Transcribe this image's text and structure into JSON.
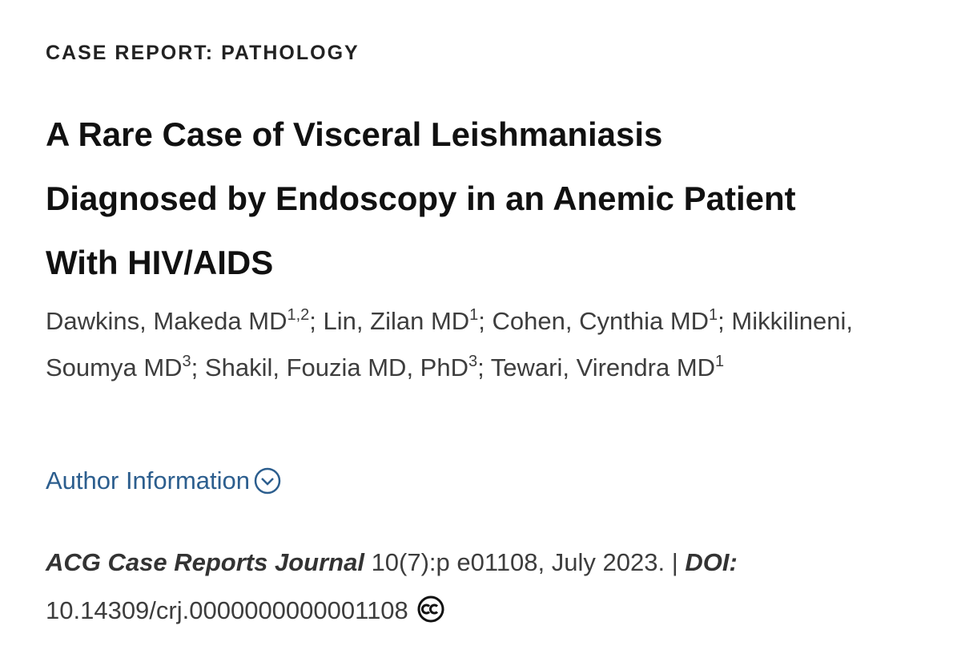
{
  "category": "CASE REPORT: PATHOLOGY",
  "title": "A Rare Case of Visceral Leishmaniasis Diagnosed by Endoscopy in an Anemic Patient With HIV/AIDS",
  "authors": {
    "separator": ";",
    "list": [
      {
        "name": "Dawkins, Makeda MD",
        "affiliations": "1,2"
      },
      {
        "name": "Lin, Zilan MD",
        "affiliations": "1"
      },
      {
        "name": "Cohen, Cynthia MD",
        "affiliations": "1"
      },
      {
        "name": "Mikkilineni, Soumya MD",
        "affiliations": "3"
      },
      {
        "name": "Shakil, Fouzia MD, PhD",
        "affiliations": "3"
      },
      {
        "name": "Tewari, Virendra MD",
        "affiliations": "1"
      }
    ]
  },
  "author_info": "Author Information",
  "citation": {
    "journal": "ACG Case Reports Journal",
    "details": "10(7):p e01108, July 2023.",
    "divider": "|",
    "doi_label": "DOI:",
    "doi": "10.14309/crj.0000000000001108"
  }
}
